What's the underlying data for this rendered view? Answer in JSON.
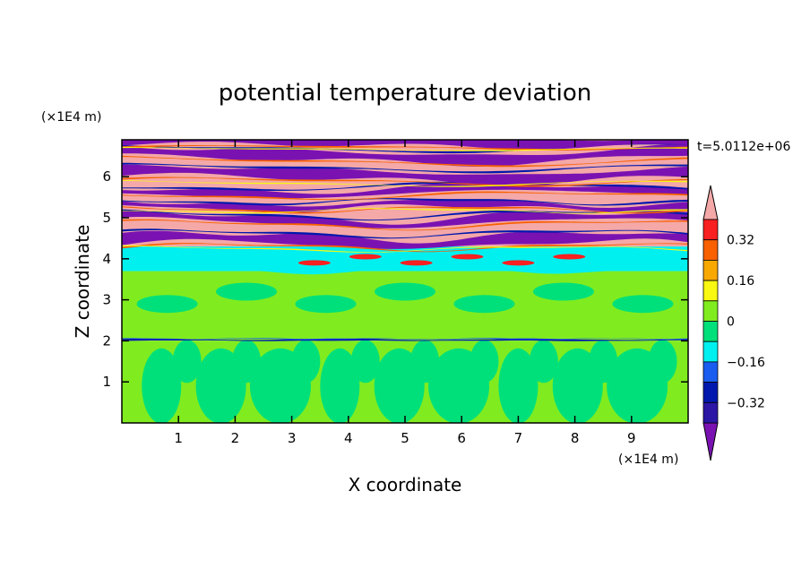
{
  "chart_data": {
    "type": "heatmap",
    "title": "potential temperature deviation",
    "xlabel": "X coordinate",
    "ylabel": "Z coordinate",
    "x_unit": "(×1E4 m)",
    "y_unit": "(×1E4 m)",
    "time_label": "t=5.0112e+06",
    "xlim": [
      0,
      10
    ],
    "ylim": [
      0,
      6.9
    ],
    "x_ticks": [
      "1",
      "2",
      "3",
      "4",
      "5",
      "6",
      "7",
      "8",
      "9"
    ],
    "y_ticks": [
      "1",
      "2",
      "3",
      "4",
      "5",
      "6"
    ],
    "colorbar": {
      "tick_labels": [
        "0.32",
        "0.16",
        "0",
        "−0.16",
        "−0.32"
      ],
      "tick_values": [
        0.32,
        0.16,
        0,
        -0.16,
        -0.32
      ],
      "levels": [
        -0.4,
        -0.32,
        -0.24,
        -0.16,
        -0.08,
        0,
        0.08,
        0.16,
        0.24,
        0.32,
        0.4
      ],
      "colors": [
        "#7a12b2",
        "#2b16a6",
        "#0018ad",
        "#1a5cf0",
        "#00f0f0",
        "#00e07a",
        "#80ec1f",
        "#f8f810",
        "#f8a800",
        "#f86000",
        "#f82020",
        "#f4a8a8"
      ],
      "extend": "both"
    },
    "bands": [
      {
        "z": [
          0.0,
          2.0
        ],
        "regime": "neutral",
        "dominant_colors": [
          "#00e07a",
          "#80ec1f"
        ]
      },
      {
        "z": [
          2.0,
          2.05
        ],
        "regime": "sharp negative line",
        "dominant_colors": [
          "#0018ad",
          "#f82020"
        ]
      },
      {
        "z": [
          2.05,
          3.7
        ],
        "regime": "near-neutral",
        "dominant_colors": [
          "#80ec1f",
          "#00e07a"
        ]
      },
      {
        "z": [
          3.7,
          4.3
        ],
        "regime": "slightly negative",
        "dominant_colors": [
          "#00f0f0"
        ]
      },
      {
        "z": [
          4.3,
          6.9
        ],
        "regime": "alternating layers",
        "dominant_colors": [
          "#7a12b2",
          "#f4a8a8"
        ]
      }
    ]
  }
}
